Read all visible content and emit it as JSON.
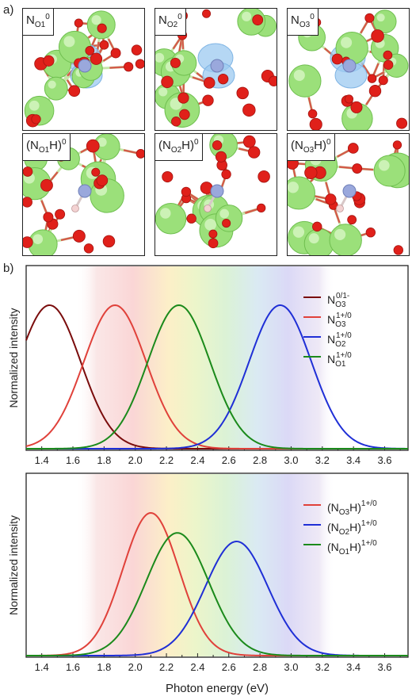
{
  "panel_a_label": "a)",
  "panel_b_label": "b)",
  "structures": [
    {
      "label_main": "N",
      "label_sub": "O1",
      "label_sup": "0",
      "kind": "N"
    },
    {
      "label_main": "N",
      "label_sub": "O2",
      "label_sup": "0",
      "kind": "N"
    },
    {
      "label_main": "N",
      "label_sub": "O3",
      "label_sup": "0",
      "kind": "N"
    },
    {
      "label_main": "(N",
      "label_sub": "O1",
      "label_tail": "H)",
      "label_sup": "0",
      "kind": "NH"
    },
    {
      "label_main": "(N",
      "label_sub": "O2",
      "label_tail": "H)",
      "label_sup": "0",
      "kind": "NH"
    },
    {
      "label_main": "(N",
      "label_sub": "O3",
      "label_tail": "H)",
      "label_sup": "0",
      "kind": "NH"
    }
  ],
  "colors": {
    "dark_red": "#7a0c0c",
    "red": "#e0413a",
    "blue": "#1f2fd6",
    "green": "#1b8a1b",
    "atom_green": "#9be07a",
    "atom_red": "#e0201a",
    "atom_n": "#9aa8dc",
    "orbital": "#9ccaf0"
  },
  "chart_data": [
    {
      "type": "line",
      "ylabel": "Normalized intensity",
      "xlabel": "",
      "xlim": [
        1.3,
        3.75
      ],
      "xticks": [
        "1.4",
        "1.6",
        "1.8",
        "2.0",
        "2.2",
        "2.4",
        "2.6",
        "2.8",
        "3.0",
        "3.2",
        "3.4",
        "3.6"
      ],
      "legend_position": "top-right",
      "series": [
        {
          "name": "N₀₃ 0/1-",
          "legend_main": "N",
          "legend_sub": "O3",
          "legend_sup": "0/1-",
          "color_key": "dark_red",
          "center": 1.45,
          "width": 0.2,
          "peak": 1.0
        },
        {
          "name": "N₀₃ 1+/0",
          "legend_main": "N",
          "legend_sub": "O3",
          "legend_sup": "1+/0",
          "color_key": "red",
          "center": 1.87,
          "width": 0.2,
          "peak": 1.0
        },
        {
          "name": "N₀₂ 1+/0",
          "legend_main": "N",
          "legend_sub": "O2",
          "legend_sup": "1+/0",
          "color_key": "blue",
          "center": 2.93,
          "width": 0.2,
          "peak": 1.0
        },
        {
          "name": "N₀₁ 1+/0",
          "legend_main": "N",
          "legend_sub": "O1",
          "legend_sup": "1+/0",
          "color_key": "green",
          "center": 2.28,
          "width": 0.2,
          "peak": 1.0
        }
      ]
    },
    {
      "type": "line",
      "ylabel": "Normalized intensity",
      "xlabel": "Photon energy (eV)",
      "xlim": [
        1.3,
        3.75
      ],
      "xticks": [
        "1.4",
        "1.6",
        "1.8",
        "2.0",
        "2.2",
        "2.4",
        "2.6",
        "2.8",
        "3.0",
        "3.2",
        "3.4",
        "3.6"
      ],
      "legend_position": "top-right",
      "series": [
        {
          "name": "(N₀₃H) 1+/0",
          "legend_main": "(N",
          "legend_sub": "O3",
          "legend_tail": "H)",
          "legend_sup": "1+/0",
          "color_key": "red",
          "center": 2.1,
          "width": 0.18,
          "peak": 1.0
        },
        {
          "name": "(N₀₂H) 1+/0",
          "legend_main": "(N",
          "legend_sub": "O2",
          "legend_tail": "H)",
          "legend_sup": "1+/0",
          "color_key": "blue",
          "center": 2.65,
          "width": 0.2,
          "peak": 0.8
        },
        {
          "name": "(N₀₁H) 1+/0",
          "legend_main": "(N",
          "legend_sub": "O1",
          "legend_tail": "H)",
          "legend_sup": "1+/0",
          "color_key": "green",
          "center": 2.27,
          "width": 0.2,
          "peak": 0.86
        }
      ]
    }
  ]
}
